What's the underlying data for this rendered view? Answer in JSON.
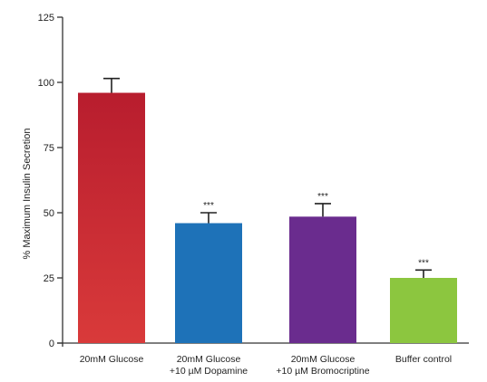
{
  "chart_data": {
    "type": "bar",
    "title": "",
    "xlabel": "",
    "ylabel": "% Maximum Insulin Secretion",
    "ylim": [
      0,
      125
    ],
    "yticks": [
      0,
      25,
      50,
      75,
      100,
      125
    ],
    "grid": false,
    "legend": "none",
    "categories": [
      [
        "20mM Glucose"
      ],
      [
        "20mM Glucose",
        "+10 µM Dopamine"
      ],
      [
        "20mM Glucose",
        "+10 µM Bromocriptine"
      ],
      [
        "Buffer control"
      ]
    ],
    "values": [
      96,
      46,
      48.5,
      25
    ],
    "error_upper": [
      5.5,
      4,
      5,
      3
    ],
    "significance": [
      "",
      "***",
      "***",
      "***"
    ],
    "colors": [
      "#C8202E",
      "#1E72B8",
      "#6A2C8E",
      "#8CC63F"
    ]
  }
}
